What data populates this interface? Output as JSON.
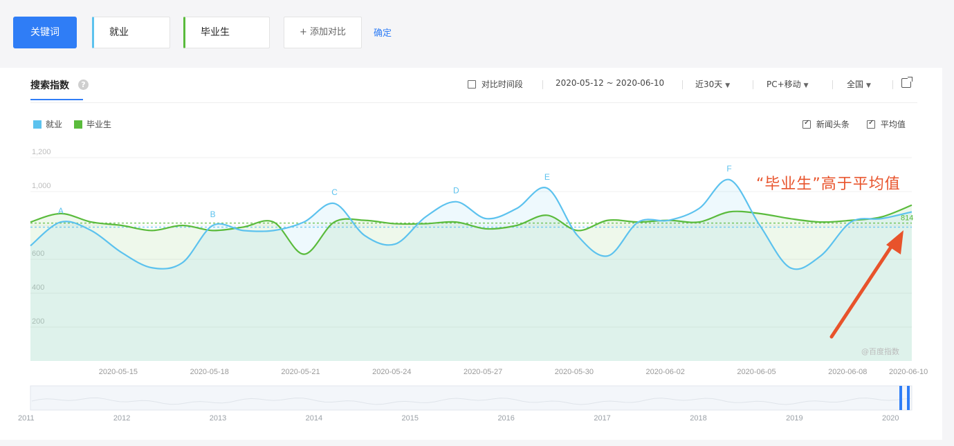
{
  "keyword_bar": {
    "keyword_button": "关键词",
    "keywords": [
      {
        "label": "就业",
        "color": "#5cc2ee"
      },
      {
        "label": "毕业生",
        "color": "#5abb3c"
      }
    ],
    "add_compare": "+ 添加对比",
    "confirm": "确定"
  },
  "panel": {
    "tab": "搜索指数",
    "compare_period": "对比时间段",
    "date_range": "2020-05-12 ~ 2020-06-10",
    "period": "近30天",
    "device": "PC+移动",
    "region": "全国",
    "legend": [
      "就业",
      "毕业生"
    ],
    "options": {
      "news": "新闻头条",
      "average": "平均值"
    },
    "annotation": "“毕业生”高于平均值",
    "watermark": "@百度指数"
  },
  "chart_data": {
    "type": "area",
    "x": [
      "2020-05-12",
      "2020-05-13",
      "2020-05-14",
      "2020-05-15",
      "2020-05-16",
      "2020-05-17",
      "2020-05-18",
      "2020-05-19",
      "2020-05-20",
      "2020-05-21",
      "2020-05-22",
      "2020-05-23",
      "2020-05-24",
      "2020-05-25",
      "2020-05-26",
      "2020-05-27",
      "2020-05-28",
      "2020-05-29",
      "2020-05-30",
      "2020-05-31",
      "2020-06-01",
      "2020-06-02",
      "2020-06-03",
      "2020-06-04",
      "2020-06-05",
      "2020-06-06",
      "2020-06-07",
      "2020-06-08",
      "2020-06-09",
      "2020-06-10"
    ],
    "x_ticks": [
      "2020-05-15",
      "2020-05-18",
      "2020-05-21",
      "2020-05-24",
      "2020-05-27",
      "2020-05-30",
      "2020-06-02",
      "2020-06-05",
      "2020-06-08",
      "2020-06-10"
    ],
    "ylim": [
      0,
      1200
    ],
    "yticks": [
      "1,200",
      "1,000",
      "",
      "600",
      "400",
      "200"
    ],
    "ytick_values": [
      1200,
      1000,
      800,
      600,
      400,
      200
    ],
    "series": [
      {
        "name": "就业",
        "color": "#5cc2ee",
        "values": [
          680,
          820,
          770,
          640,
          550,
          580,
          800,
          770,
          770,
          820,
          930,
          740,
          690,
          850,
          940,
          840,
          900,
          1020,
          740,
          620,
          820,
          830,
          900,
          1070,
          800,
          550,
          620,
          820,
          840,
          880
        ]
      },
      {
        "name": "毕业生",
        "color": "#5abb3c",
        "values": [
          820,
          870,
          820,
          800,
          770,
          800,
          770,
          790,
          820,
          630,
          820,
          830,
          810,
          810,
          820,
          780,
          800,
          860,
          770,
          830,
          820,
          830,
          820,
          880,
          870,
          840,
          820,
          830,
          850,
          920
        ]
      }
    ],
    "averages": [
      {
        "series": "就业",
        "value": 790
      },
      {
        "series": "毕业生",
        "value": 814
      }
    ],
    "average_label": "814",
    "peak_markers": [
      {
        "label": "A",
        "index": 1
      },
      {
        "label": "B",
        "index": 6
      },
      {
        "label": "C",
        "index": 10
      },
      {
        "label": "D",
        "index": 14
      },
      {
        "label": "E",
        "index": 17
      },
      {
        "label": "F",
        "index": 23
      }
    ],
    "overview_years": [
      "2011",
      "2012",
      "2013",
      "2014",
      "2015",
      "2016",
      "2017",
      "2018",
      "2019",
      "2020"
    ],
    "grid": true,
    "legend_position": "top-left"
  }
}
